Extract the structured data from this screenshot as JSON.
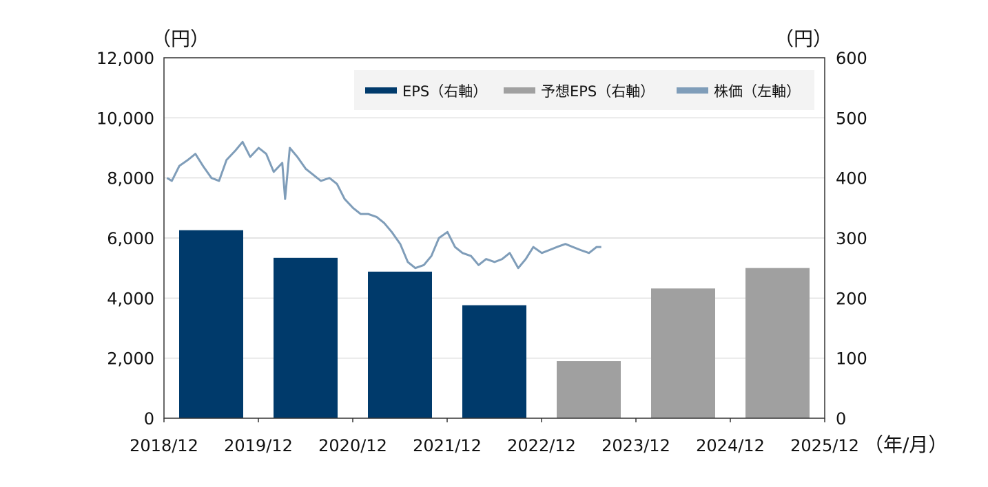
{
  "chart_data": {
    "type": "bar",
    "title": "",
    "left_axis_unit": "（円）",
    "right_axis_unit": "（円）",
    "x_axis_unit": "（年/月）",
    "x_ticks": [
      "2018/12",
      "2019/12",
      "2020/12",
      "2021/12",
      "2022/12",
      "2023/12",
      "2024/12",
      "2025/12"
    ],
    "left_ticks": [
      "0",
      "2,000",
      "4,000",
      "6,000",
      "8,000",
      "10,000",
      "12,000"
    ],
    "right_ticks": [
      "0",
      "100",
      "200",
      "300",
      "400",
      "500",
      "600"
    ],
    "left_ylim": [
      0,
      12000
    ],
    "right_ylim": [
      0,
      600
    ],
    "grid": true,
    "legend_position": "top-right",
    "legend": [
      {
        "label": "EPS（右軸）",
        "color": "#003a6b"
      },
      {
        "label": "予想EPS（右軸）",
        "color": "#a0a0a0"
      },
      {
        "label": "株価（左軸）",
        "color": "#7f9db9"
      }
    ],
    "bars": [
      {
        "period": "2019/12",
        "value": 313,
        "series": "EPS（右軸）"
      },
      {
        "period": "2020/12",
        "value": 267,
        "series": "EPS（右軸）"
      },
      {
        "period": "2021/12",
        "value": 244,
        "series": "EPS（右軸）"
      },
      {
        "period": "2022/12",
        "value": 188,
        "series": "EPS（右軸）"
      },
      {
        "period": "2023/12",
        "value": 95,
        "series": "予想EPS（右軸）"
      },
      {
        "period": "2024/12",
        "value": 216,
        "series": "予想EPS（右軸）"
      },
      {
        "period": "2025/12",
        "value": 250,
        "series": "予想EPS（右軸）"
      }
    ],
    "price_series": {
      "name": "株価（左軸）",
      "x": [
        2018.95,
        2019.0,
        2019.08,
        2019.17,
        2019.25,
        2019.33,
        2019.42,
        2019.5,
        2019.58,
        2019.67,
        2019.75,
        2019.83,
        2019.92,
        2020.0,
        2020.08,
        2020.17,
        2020.2,
        2020.25,
        2020.33,
        2020.42,
        2020.5,
        2020.58,
        2020.67,
        2020.75,
        2020.83,
        2020.92,
        2021.0,
        2021.08,
        2021.17,
        2021.25,
        2021.33,
        2021.42,
        2021.5,
        2021.58,
        2021.67,
        2021.75,
        2021.83,
        2021.92,
        2022.0,
        2022.08,
        2022.17,
        2022.25,
        2022.33,
        2022.42,
        2022.5,
        2022.58,
        2022.67,
        2022.75,
        2022.83,
        2022.92,
        2023.0,
        2023.08,
        2023.17,
        2023.25,
        2023.33,
        2023.42,
        2023.5,
        2023.55
      ],
      "y": [
        8000,
        7900,
        8400,
        8600,
        8800,
        8400,
        8000,
        7900,
        8600,
        8900,
        9200,
        8700,
        9000,
        8800,
        8200,
        8500,
        7300,
        9000,
        8700,
        8300,
        8100,
        7900,
        8000,
        7800,
        7300,
        7000,
        6800,
        6800,
        6700,
        6500,
        6200,
        5800,
        5200,
        5000,
        5100,
        5400,
        6000,
        6200,
        5700,
        5500,
        5400,
        5100,
        5300,
        5200,
        5300,
        5500,
        5000,
        5300,
        5700,
        5500,
        5600,
        5700,
        5800,
        5700,
        5600,
        5500,
        5700,
        5700
      ]
    }
  }
}
